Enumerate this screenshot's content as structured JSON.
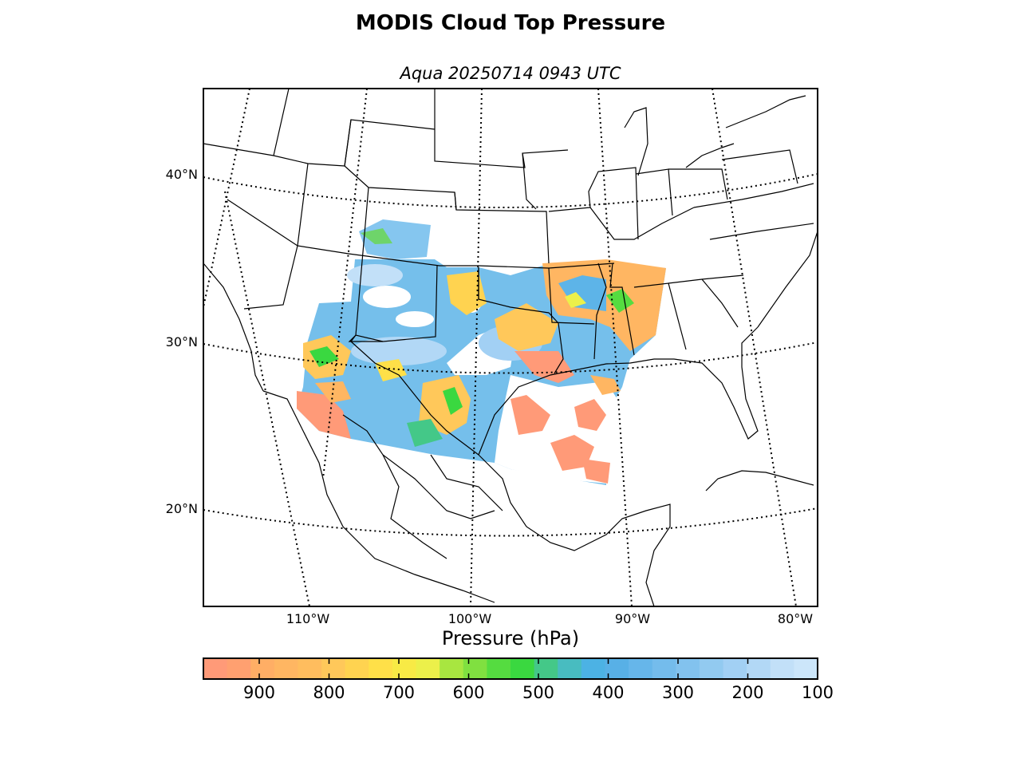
{
  "title": "MODIS Cloud Top Pressure",
  "subtitle": "Aqua 20250714 0943 UTC",
  "lat_labels": [
    "40°N",
    "30°N",
    "20°N"
  ],
  "lon_labels": [
    "110°W",
    "100°W",
    "90°W",
    "80°W"
  ],
  "colorbar": {
    "label": "Pressure (hPa)",
    "min": 980,
    "max": 100,
    "tick_values": [
      900,
      800,
      700,
      600,
      500,
      400,
      300,
      200,
      100
    ],
    "tick_labels": [
      "900",
      "800",
      "700",
      "600",
      "500",
      "400",
      "300",
      "200",
      "100"
    ],
    "colors": [
      "#ff9a78",
      "#ffa070",
      "#ffae65",
      "#ffb662",
      "#ffbd5e",
      "#ffc85a",
      "#ffd350",
      "#ffe048",
      "#f8ea45",
      "#ecf04a",
      "#a8e640",
      "#80e040",
      "#55dc40",
      "#3ad840",
      "#44c888",
      "#48bcc0",
      "#4cb2e4",
      "#58b0e6",
      "#66b6ea",
      "#74bcec",
      "#82c2ee",
      "#92caf0",
      "#a2d0f4",
      "#b2d8f6",
      "#c2e0f8",
      "#cce6fa"
    ]
  },
  "colors": {
    "frame": "#000000",
    "background": "#ffffff",
    "high_cloud": "#5db4e8",
    "low_cloud": "#ff9a78",
    "mid_cloud": "#ffc85a",
    "green_band": "#3ad840"
  }
}
